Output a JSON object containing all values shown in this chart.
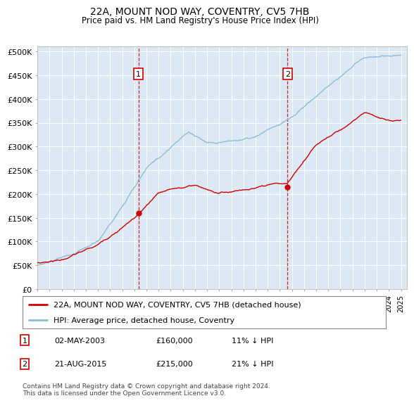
{
  "title": "22A, MOUNT NOD WAY, COVENTRY, CV5 7HB",
  "subtitle": "Price paid vs. HM Land Registry's House Price Index (HPI)",
  "bg_color": "#dce9f5",
  "hpi_color": "#8abbd4",
  "price_color": "#cc0000",
  "dashed_color": "#cc0000",
  "ylim": [
    0,
    500000
  ],
  "yticks": [
    0,
    50000,
    100000,
    150000,
    200000,
    250000,
    300000,
    350000,
    400000,
    450000,
    500000
  ],
  "year_start": 1995,
  "year_end": 2025,
  "sale1_year": 2003.33,
  "sale1_price": 160000,
  "sale1_label": "1",
  "sale2_year": 2015.63,
  "sale2_price": 215000,
  "sale2_label": "2",
  "legend_line1": "22A, MOUNT NOD WAY, COVENTRY, CV5 7HB (detached house)",
  "legend_line2": "HPI: Average price, detached house, Coventry",
  "table_row1": [
    "1",
    "02-MAY-2003",
    "£160,000",
    "11% ↓ HPI"
  ],
  "table_row2": [
    "2",
    "21-AUG-2015",
    "£215,000",
    "21% ↓ HPI"
  ],
  "footer": "Contains HM Land Registry data © Crown copyright and database right 2024.\nThis data is licensed under the Open Government Licence v3.0."
}
